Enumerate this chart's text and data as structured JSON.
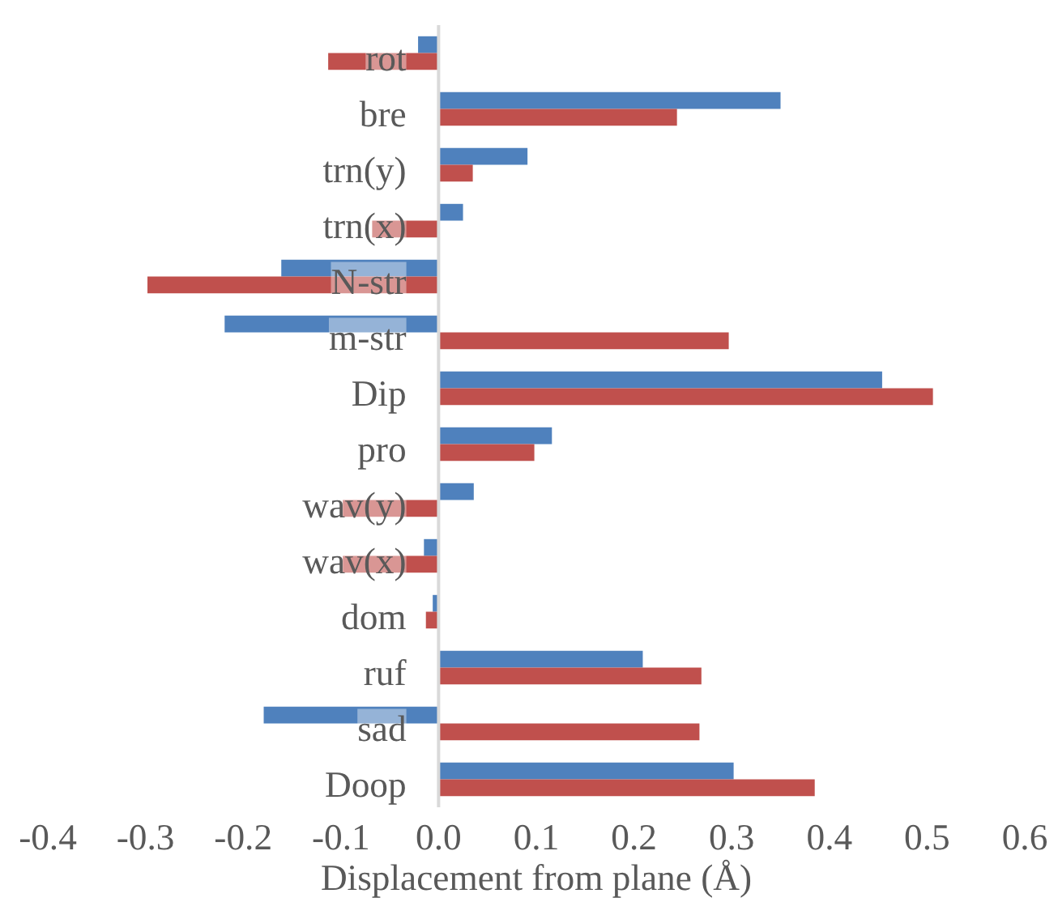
{
  "chart_data": {
    "type": "bar",
    "orientation": "horizontal",
    "xlabel": "Displacement from plane (Å)",
    "categories": [
      "rot",
      "bre",
      "trn(y)",
      "trn(x)",
      "N-str",
      "m-str",
      "Dip",
      "pro",
      "wav(y)",
      "wav(x)",
      "dom",
      "ruf",
      "sad",
      "Doop"
    ],
    "series": [
      {
        "color": "#4f81bd",
        "values": [
          -0.021,
          0.35,
          0.091,
          0.025,
          -0.161,
          -0.219,
          0.454,
          0.116,
          0.036,
          -0.015,
          -0.006,
          0.209,
          -0.179,
          0.302
        ]
      },
      {
        "color": "#c0504d",
        "values": [
          -0.113,
          0.244,
          0.035,
          -0.068,
          -0.298,
          0.297,
          0.506,
          0.098,
          -0.098,
          -0.098,
          -0.013,
          0.269,
          0.267,
          0.385
        ]
      }
    ],
    "xlim": [
      -0.4,
      0.6
    ],
    "xticks": [
      -0.4,
      -0.3,
      -0.2,
      -0.1,
      {
        "value": 0,
        "label": "0.0"
      },
      0.1,
      0.2,
      0.3,
      0.4,
      0.5,
      0.6
    ],
    "grid": false
  }
}
